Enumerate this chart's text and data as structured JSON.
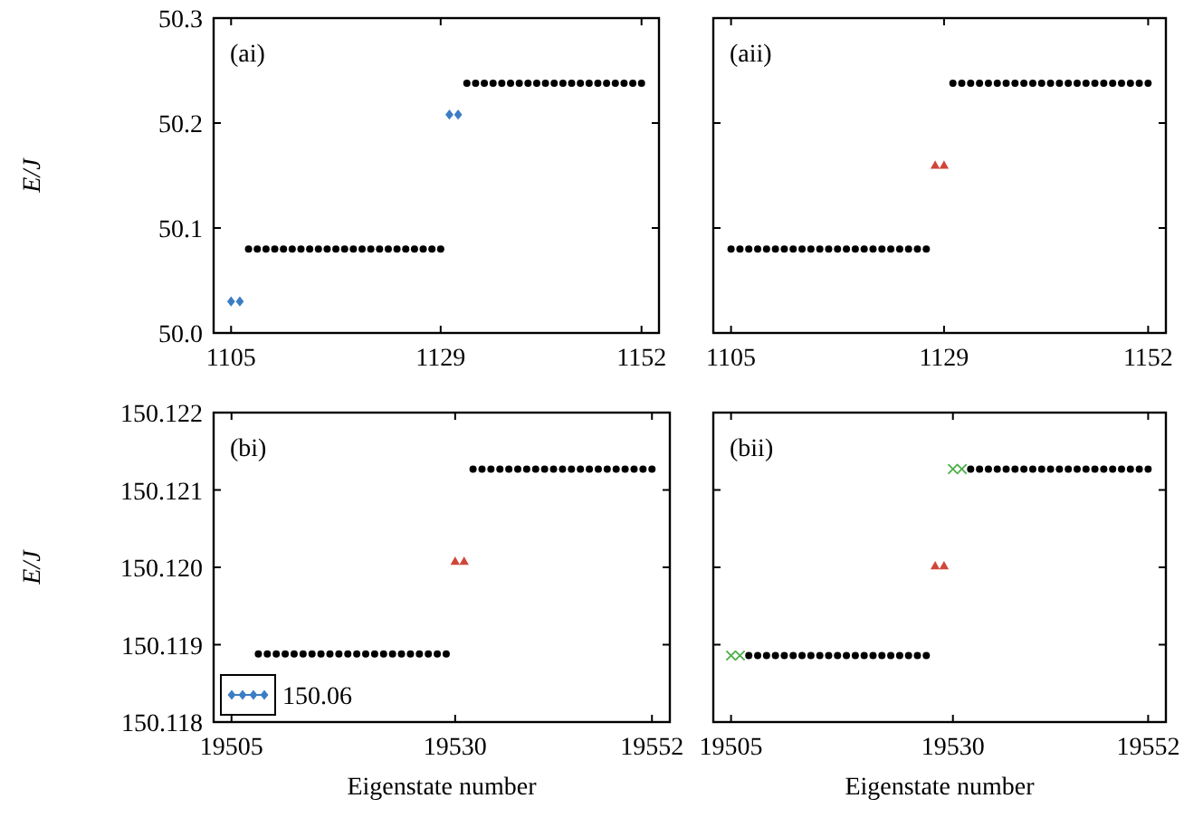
{
  "chart_data": [
    {
      "type": "scatter",
      "title": "(ai)",
      "ylabel": "E/J",
      "xlim": [
        1103,
        1154
      ],
      "xticks": [
        1105,
        1129,
        1152
      ],
      "ylim": [
        50.0,
        50.3
      ],
      "yticks": [
        {
          "value": 50.0,
          "label": "50.0"
        },
        50.1,
        50.2,
        50.3
      ],
      "series": [
        {
          "color": "#000000",
          "marker": "circle",
          "x": [
            1107,
            1108,
            1109,
            1110,
            1111,
            1112,
            1113,
            1114,
            1115,
            1116,
            1117,
            1118,
            1119,
            1120,
            1121,
            1122,
            1123,
            1124,
            1125,
            1126,
            1127,
            1128,
            1129,
            1132,
            1133,
            1134,
            1135,
            1136,
            1137,
            1138,
            1139,
            1140,
            1141,
            1142,
            1143,
            1144,
            1145,
            1146,
            1147,
            1148,
            1149,
            1150,
            1151,
            1152
          ],
          "values": [
            50.08,
            50.08,
            50.08,
            50.08,
            50.08,
            50.08,
            50.08,
            50.08,
            50.08,
            50.08,
            50.08,
            50.08,
            50.08,
            50.08,
            50.08,
            50.08,
            50.08,
            50.08,
            50.08,
            50.08,
            50.08,
            50.08,
            50.08,
            50.238,
            50.238,
            50.238,
            50.238,
            50.238,
            50.238,
            50.238,
            50.238,
            50.238,
            50.238,
            50.238,
            50.238,
            50.238,
            50.238,
            50.238,
            50.238,
            50.238,
            50.238,
            50.238,
            50.238,
            50.238
          ]
        },
        {
          "color": "#3b7dc4",
          "marker": "diamond",
          "x": [
            1105,
            1106,
            1130,
            1131
          ],
          "values": [
            50.03,
            50.03,
            50.208,
            50.208
          ]
        }
      ]
    },
    {
      "type": "scatter",
      "title": "(aii)",
      "xlim": [
        1103,
        1154
      ],
      "xticks": [
        1105,
        1129,
        1152
      ],
      "ylim": [
        50.0,
        50.3
      ],
      "yticks": [
        50.0,
        50.1,
        50.2,
        50.3
      ],
      "tick_labels": "x",
      "series": [
        {
          "color": "#000000",
          "marker": "circle",
          "x": [
            1105,
            1106,
            1107,
            1108,
            1109,
            1110,
            1111,
            1112,
            1113,
            1114,
            1115,
            1116,
            1117,
            1118,
            1119,
            1120,
            1121,
            1122,
            1123,
            1124,
            1125,
            1126,
            1127,
            1130,
            1131,
            1132,
            1133,
            1134,
            1135,
            1136,
            1137,
            1138,
            1139,
            1140,
            1141,
            1142,
            1143,
            1144,
            1145,
            1146,
            1147,
            1148,
            1149,
            1150,
            1151,
            1152
          ],
          "values": [
            50.08,
            50.08,
            50.08,
            50.08,
            50.08,
            50.08,
            50.08,
            50.08,
            50.08,
            50.08,
            50.08,
            50.08,
            50.08,
            50.08,
            50.08,
            50.08,
            50.08,
            50.08,
            50.08,
            50.08,
            50.08,
            50.08,
            50.08,
            50.238,
            50.238,
            50.238,
            50.238,
            50.238,
            50.238,
            50.238,
            50.238,
            50.238,
            50.238,
            50.238,
            50.238,
            50.238,
            50.238,
            50.238,
            50.238,
            50.238,
            50.238,
            50.238,
            50.238,
            50.238,
            50.238,
            50.238
          ]
        },
        {
          "color": "#d0473a",
          "marker": "triangle",
          "x": [
            1128,
            1129
          ],
          "values": [
            50.16,
            50.16
          ]
        }
      ]
    },
    {
      "type": "scatter",
      "title": "(bi)",
      "ylabel": "E/J",
      "xlabel": "Eigenstate number",
      "xlim": [
        19503,
        19554
      ],
      "xticks": [
        19505,
        19530,
        19552
      ],
      "ylim": [
        150.118,
        150.122
      ],
      "yticks": [
        150.118,
        150.119,
        {
          "value": 150.12,
          "label": "150.120"
        },
        150.121,
        150.122
      ],
      "legend": "bottom left",
      "series": [
        {
          "color": "#000000",
          "marker": "circle",
          "x": [
            19508,
            19509,
            19510,
            19511,
            19512,
            19513,
            19514,
            19515,
            19516,
            19517,
            19518,
            19519,
            19520,
            19521,
            19522,
            19523,
            19524,
            19525,
            19526,
            19527,
            19528,
            19529,
            19532,
            19533,
            19534,
            19535,
            19536,
            19537,
            19538,
            19539,
            19540,
            19541,
            19542,
            19543,
            19544,
            19545,
            19546,
            19547,
            19548,
            19549,
            19550,
            19551,
            19552
          ],
          "values": [
            150.11888,
            150.11888,
            150.11888,
            150.11888,
            150.11888,
            150.11888,
            150.11888,
            150.11888,
            150.11888,
            150.11888,
            150.11888,
            150.11888,
            150.11888,
            150.11888,
            150.11888,
            150.11888,
            150.11888,
            150.11888,
            150.11888,
            150.11888,
            150.11888,
            150.11888,
            150.12127,
            150.12127,
            150.12127,
            150.12127,
            150.12127,
            150.12127,
            150.12127,
            150.12127,
            150.12127,
            150.12127,
            150.12127,
            150.12127,
            150.12127,
            150.12127,
            150.12127,
            150.12127,
            150.12127,
            150.12127,
            150.12127,
            150.12127,
            150.12127
          ]
        },
        {
          "color": "#d0473a",
          "marker": "triangle",
          "x": [
            19530,
            19531
          ],
          "values": [
            150.12008,
            150.12008
          ]
        },
        {
          "name": "150.06",
          "color": "#3b7dc4",
          "marker": "diamond"
        }
      ]
    },
    {
      "type": "scatter",
      "title": "(bii)",
      "xlabel": "Eigenstate number",
      "xlim": [
        19503,
        19554
      ],
      "xticks": [
        19505,
        19530,
        19552
      ],
      "ylim": [
        150.118,
        150.122
      ],
      "yticks": [
        150.118,
        150.119,
        150.12,
        150.121,
        150.122
      ],
      "tick_labels": "x",
      "series": [
        {
          "color": "#000000",
          "marker": "circle",
          "x": [
            19507,
            19508,
            19509,
            19510,
            19511,
            19512,
            19513,
            19514,
            19515,
            19516,
            19517,
            19518,
            19519,
            19520,
            19521,
            19522,
            19523,
            19524,
            19525,
            19526,
            19527,
            19532,
            19533,
            19534,
            19535,
            19536,
            19537,
            19538,
            19539,
            19540,
            19541,
            19542,
            19543,
            19544,
            19545,
            19546,
            19547,
            19548,
            19549,
            19550,
            19551,
            19552
          ],
          "values": [
            150.11886,
            150.11886,
            150.11886,
            150.11886,
            150.11886,
            150.11886,
            150.11886,
            150.11886,
            150.11886,
            150.11886,
            150.11886,
            150.11886,
            150.11886,
            150.11886,
            150.11886,
            150.11886,
            150.11886,
            150.11886,
            150.11886,
            150.11886,
            150.11886,
            150.12127,
            150.12127,
            150.12127,
            150.12127,
            150.12127,
            150.12127,
            150.12127,
            150.12127,
            150.12127,
            150.12127,
            150.12127,
            150.12127,
            150.12127,
            150.12127,
            150.12127,
            150.12127,
            150.12127,
            150.12127,
            150.12127,
            150.12127,
            150.12127
          ]
        },
        {
          "color": "#d0473a",
          "marker": "triangle",
          "x": [
            19528,
            19529
          ],
          "values": [
            150.12002,
            150.12002
          ]
        },
        {
          "color": "#4daf4a",
          "marker": "cross",
          "x": [
            19505,
            19506,
            19530,
            19531
          ],
          "values": [
            150.11886,
            150.11886,
            150.12127,
            150.12127
          ]
        }
      ]
    }
  ]
}
